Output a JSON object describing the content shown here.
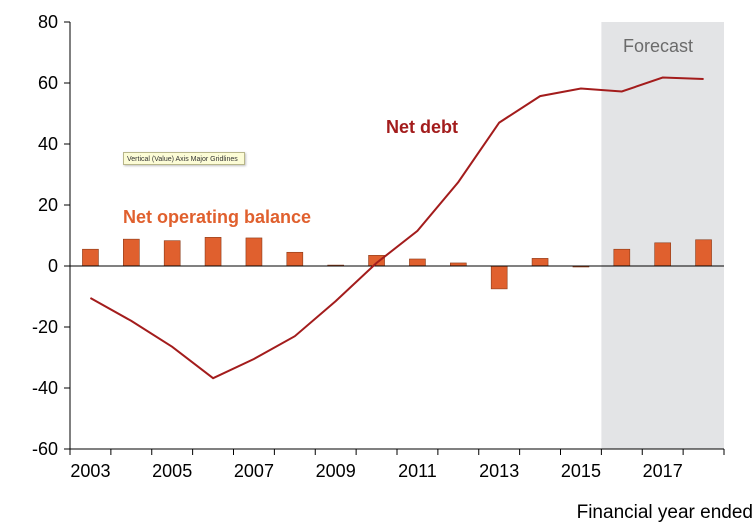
{
  "chart_data": {
    "type": "bar",
    "x": [
      2003,
      2004,
      2005,
      2006,
      2007,
      2008,
      2009,
      2010,
      2011,
      2012,
      2013,
      2014,
      2015,
      2016,
      2017,
      2018
    ],
    "x_tick_labels": [
      "2003",
      "2005",
      "2007",
      "2009",
      "2011",
      "2013",
      "2015",
      "2017"
    ],
    "y_tick_labels": [
      "80",
      "60",
      "40",
      "20",
      "0",
      "-20",
      "-40",
      "-60"
    ],
    "ylim": [
      -60,
      80
    ],
    "xlabel": "Financial year ended",
    "forecast": {
      "label": "Forecast",
      "from": 2015.5,
      "to": 2018.5,
      "color": "#e3e4e6"
    },
    "series": [
      {
        "name": "Net operating balance",
        "type": "bar",
        "color": "#e0602e",
        "label_color": "#e0602e",
        "values": [
          5.5,
          8.8,
          8.3,
          9.4,
          9.2,
          4.5,
          0.3,
          3.5,
          2.3,
          1.0,
          -7.5,
          2.5,
          -0.3,
          5.5,
          7.6,
          8.6
        ]
      },
      {
        "name": "Net debt",
        "type": "line",
        "color": "#a31c1c",
        "label_color": "#a31c1c",
        "values": [
          -10.5,
          -18,
          -26.5,
          -36.8,
          -30.5,
          -23,
          -11.5,
          1,
          11.5,
          27.5,
          47,
          55.7,
          58.2,
          57.2,
          61.8,
          61.3
        ]
      }
    ],
    "grid": false
  },
  "tooltip": {
    "text": "Vertical (Value) Axis Major Gridlines"
  }
}
